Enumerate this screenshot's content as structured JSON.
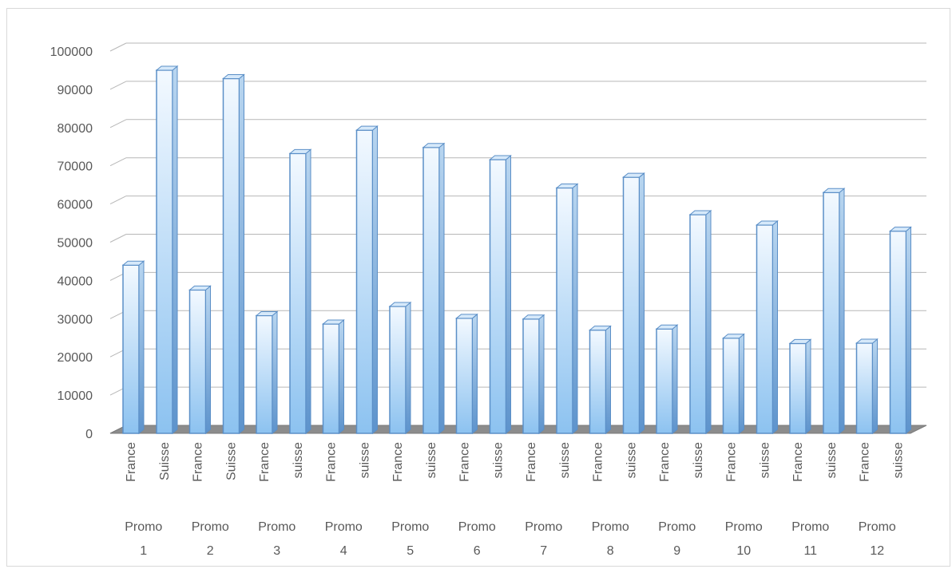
{
  "chart_data": {
    "type": "bar",
    "title": "",
    "xlabel": "",
    "ylabel": "",
    "ylim": [
      0,
      100000
    ],
    "yticks": [
      0,
      10000,
      20000,
      30000,
      40000,
      50000,
      60000,
      70000,
      80000,
      90000,
      100000
    ],
    "grid": true,
    "legend": "none",
    "style": "3d-clustered-column",
    "bar_color": "#9fcbf2",
    "bar_edge_color": "#5b8fc7",
    "gridline_color": "#b7b7b7",
    "groups": [
      {
        "label": "Promo 1",
        "line1": "Promo",
        "line2": "1",
        "bars": [
          {
            "category": "France",
            "value": 44000
          },
          {
            "category": "Suisse",
            "value": 95000
          }
        ]
      },
      {
        "label": "Promo 2",
        "line1": "Promo",
        "line2": "2",
        "bars": [
          {
            "category": "France",
            "value": 37500
          },
          {
            "category": "Suisse",
            "value": 92800
          }
        ]
      },
      {
        "label": "Promo 3",
        "line1": "Promo",
        "line2": "3",
        "bars": [
          {
            "category": "France",
            "value": 30800
          },
          {
            "category": "suisse",
            "value": 73200
          }
        ]
      },
      {
        "label": "Promo 4",
        "line1": "Promo",
        "line2": "4",
        "bars": [
          {
            "category": "France",
            "value": 28600
          },
          {
            "category": "suisse",
            "value": 79300
          }
        ]
      },
      {
        "label": "Promo 5",
        "line1": "Promo",
        "line2": "5",
        "bars": [
          {
            "category": "France",
            "value": 33200
          },
          {
            "category": "suisse",
            "value": 74800
          }
        ]
      },
      {
        "label": "Promo 6",
        "line1": "Promo",
        "line2": "6",
        "bars": [
          {
            "category": "France",
            "value": 30100
          },
          {
            "category": "suisse",
            "value": 71600
          }
        ]
      },
      {
        "label": "Promo 7",
        "line1": "Promo",
        "line2": "7",
        "bars": [
          {
            "category": "France",
            "value": 29900
          },
          {
            "category": "suisse",
            "value": 64200
          }
        ]
      },
      {
        "label": "Promo 8",
        "line1": "Promo",
        "line2": "8",
        "bars": [
          {
            "category": "France",
            "value": 27000
          },
          {
            "category": "suisse",
            "value": 67000
          }
        ]
      },
      {
        "label": "Promo 9",
        "line1": "Promo",
        "line2": "9",
        "bars": [
          {
            "category": "France",
            "value": 27300
          },
          {
            "category": "suisse",
            "value": 57200
          }
        ]
      },
      {
        "label": "Promo 10",
        "line1": "Promo",
        "line2": "10",
        "bars": [
          {
            "category": "France",
            "value": 24900
          },
          {
            "category": "suisse",
            "value": 54500
          }
        ]
      },
      {
        "label": "Promo 11",
        "line1": "Promo",
        "line2": "11",
        "bars": [
          {
            "category": "France",
            "value": 23500
          },
          {
            "category": "suisse",
            "value": 63000
          }
        ]
      },
      {
        "label": "Promo 12",
        "line1": "Promo",
        "line2": "12",
        "bars": [
          {
            "category": "France",
            "value": 23600
          },
          {
            "category": "suisse",
            "value": 52900
          }
        ]
      }
    ]
  }
}
